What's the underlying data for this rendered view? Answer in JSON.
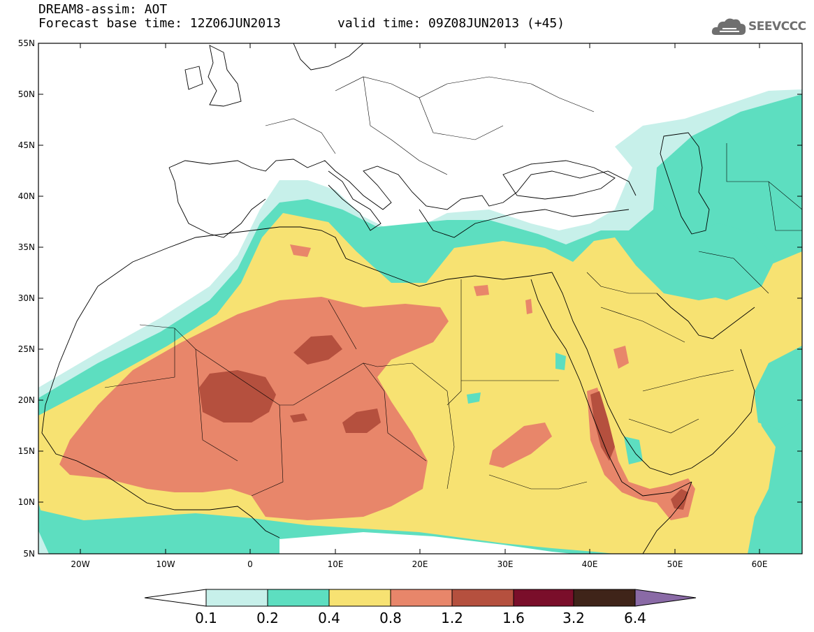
{
  "header": {
    "title": "DREAM8-assim: AOT",
    "base_time": "Forecast base time: 12Z06JUN2013",
    "valid_time": "valid time: 09Z08JUN2013 (+45)",
    "logo_text": "SEEVCCC",
    "logo_icon": "cloud-icon"
  },
  "map": {
    "projection": "lat-lon",
    "lon_range": [
      -25,
      65
    ],
    "lat_range": [
      5,
      55
    ],
    "lat_ticks": [
      "55N",
      "50N",
      "45N",
      "40N",
      "35N",
      "30N",
      "25N",
      "20N",
      "15N",
      "10N",
      "5N"
    ],
    "lon_ticks": [
      "20W",
      "10W",
      "0",
      "10E",
      "20E",
      "30E",
      "40E",
      "50E",
      "60E"
    ],
    "variable": "Aerosol optical thickness"
  },
  "colorbar": {
    "levels": [
      "0.1",
      "0.2",
      "0.4",
      "0.8",
      "1.2",
      "1.6",
      "3.2",
      "6.4"
    ],
    "colors": [
      "#ffffff",
      "#c7f0ea",
      "#5ddec0",
      "#f7e272",
      "#e8866a",
      "#b5503e",
      "#7a0e2a",
      "#3f2419",
      "#8a6aa6"
    ],
    "extend": "both"
  }
}
